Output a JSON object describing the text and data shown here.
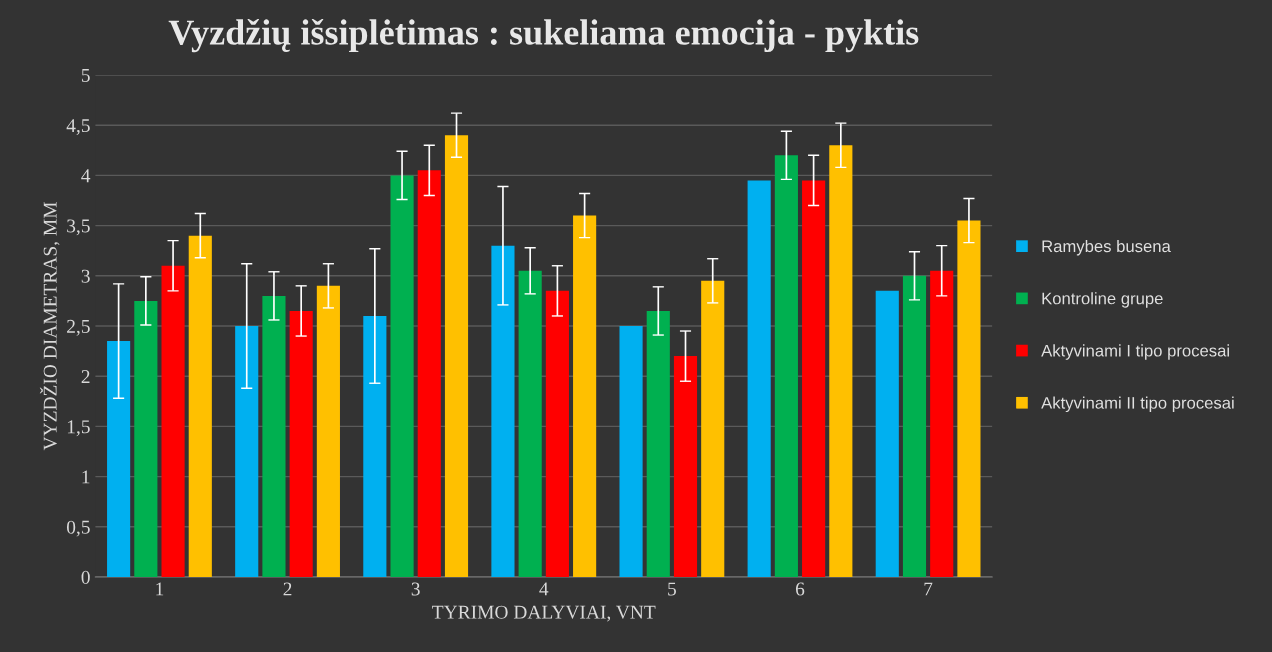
{
  "chart_data": {
    "type": "bar",
    "title": "Vyzdžių išsiplėtimas : sukeliama emocija - pyktis",
    "xlabel": "TYRIMO DALYVIAI, VNT",
    "ylabel": "VYZDŽIO DIAMETRAS, MM",
    "categories": [
      "1",
      "2",
      "3",
      "4",
      "5",
      "6",
      "7"
    ],
    "series": [
      {
        "name": "Ramybes busena",
        "color": "#00b0f0",
        "values": [
          2.35,
          2.5,
          2.6,
          3.3,
          2.5,
          3.95,
          2.85
        ],
        "errors": [
          0.57,
          0.62,
          0.67,
          0.59,
          null,
          null,
          null
        ]
      },
      {
        "name": "Kontroline grupe",
        "color": "#00b050",
        "values": [
          2.75,
          2.8,
          4.0,
          3.05,
          2.65,
          4.2,
          3.0
        ],
        "errors": [
          0.24,
          0.24,
          0.24,
          0.23,
          0.24,
          0.24,
          0.24
        ]
      },
      {
        "name": "Aktyvinami I tipo procesai",
        "color": "#ff0000",
        "values": [
          3.1,
          2.65,
          4.05,
          2.85,
          2.2,
          3.95,
          3.05
        ],
        "errors": [
          0.25,
          0.25,
          0.25,
          0.25,
          0.25,
          0.25,
          0.25
        ]
      },
      {
        "name": "Aktyvinami II tipo procesai",
        "color": "#ffc000",
        "values": [
          3.4,
          2.9,
          4.4,
          3.6,
          2.95,
          4.3,
          3.55
        ],
        "errors": [
          0.22,
          0.22,
          0.22,
          0.22,
          0.22,
          0.22,
          0.22
        ]
      }
    ],
    "ylim": [
      0,
      5
    ],
    "yticks": [
      0,
      {
        "value": 0.5,
        "label": "0,5"
      },
      1,
      {
        "value": 1.5,
        "label": "1,5"
      },
      2,
      {
        "value": 2.5,
        "label": "2,5"
      },
      3,
      {
        "value": 3.5,
        "label": "3,5"
      },
      4,
      {
        "value": 4.5,
        "label": "4,5"
      },
      5
    ],
    "grid": "y",
    "legend": "right"
  }
}
